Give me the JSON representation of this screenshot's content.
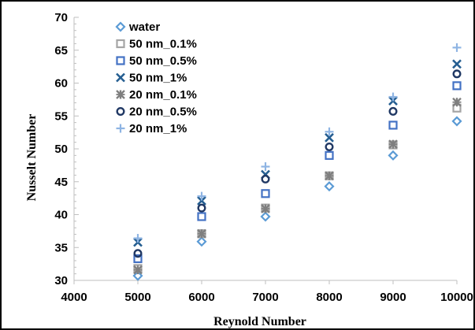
{
  "chart_data": {
    "type": "scatter",
    "title": "",
    "xlabel": "Reynold Number",
    "ylabel": "Nusselt Number",
    "xlim": [
      4000,
      10000
    ],
    "ylim": [
      30,
      70
    ],
    "xticks": [
      4000,
      5000,
      6000,
      7000,
      8000,
      9000,
      10000
    ],
    "yticks": [
      30,
      35,
      40,
      45,
      50,
      55,
      60,
      65,
      70
    ],
    "xtick_labels": [
      "4000",
      "5000",
      "6000",
      "7000",
      "8000",
      "9000",
      "10000"
    ],
    "ytick_labels": [
      "30",
      "35",
      "40",
      "45",
      "50",
      "55",
      "60",
      "65",
      "70"
    ],
    "grid": false,
    "legend_position": "top-left",
    "series": [
      {
        "name": "water",
        "marker": "diamond",
        "color": "#5b9bd5",
        "x": [
          5000,
          6000,
          7000,
          8000,
          9000,
          10000
        ],
        "y": [
          30.7,
          35.9,
          39.7,
          44.3,
          49.0,
          54.2
        ]
      },
      {
        "name": "50 nm_0.1%",
        "marker": "square",
        "color": "#a5a5a5",
        "x": [
          5000,
          6000,
          7000,
          8000,
          9000,
          10000
        ],
        "y": [
          31.8,
          37.1,
          41.0,
          45.9,
          50.6,
          56.2
        ]
      },
      {
        "name": "50 nm_0.5%",
        "marker": "square",
        "color": "#4472c4",
        "x": [
          5000,
          6000,
          7000,
          8000,
          9000,
          10000
        ],
        "y": [
          33.3,
          39.7,
          43.2,
          49.0,
          53.6,
          59.6
        ]
      },
      {
        "name": "50 nm_1%",
        "marker": "x",
        "color": "#255e91",
        "x": [
          5000,
          6000,
          7000,
          8000,
          9000,
          10000
        ],
        "y": [
          35.8,
          42.1,
          46.1,
          51.7,
          57.3,
          62.9
        ]
      },
      {
        "name": "20 nm_0.1%",
        "marker": "star",
        "color": "#7f7f7f",
        "x": [
          5000,
          6000,
          7000,
          8000,
          9000,
          10000
        ],
        "y": [
          31.6,
          37.1,
          40.9,
          45.9,
          50.7,
          57.1
        ]
      },
      {
        "name": "20 nm_0.5%",
        "marker": "circle",
        "color": "#203864",
        "x": [
          5000,
          6000,
          7000,
          8000,
          9000,
          10000
        ],
        "y": [
          34.1,
          41.0,
          45.4,
          50.3,
          55.7,
          61.4
        ]
      },
      {
        "name": "20 nm_1%",
        "marker": "plus",
        "color": "#8eb4e3",
        "x": [
          5000,
          6000,
          7000,
          8000,
          9000,
          10000
        ],
        "y": [
          36.4,
          42.8,
          47.3,
          52.6,
          57.9,
          65.4
        ]
      }
    ]
  }
}
